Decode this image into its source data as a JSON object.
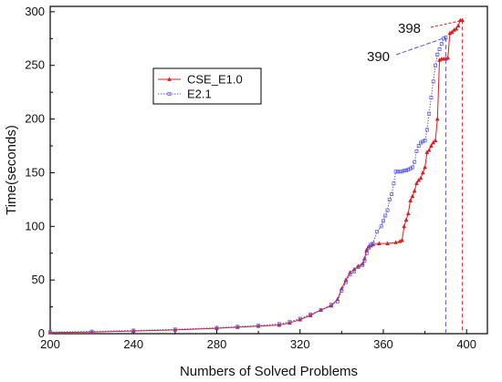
{
  "chart_data": {
    "type": "line",
    "title": "",
    "xlabel": "Numbers of Solved Problems",
    "ylabel": "Time(seconds)",
    "xlim": [
      200,
      410
    ],
    "ylim": [
      0,
      305
    ],
    "xticks": [
      200,
      240,
      280,
      320,
      360,
      400
    ],
    "yticks": [
      0,
      50,
      100,
      150,
      200,
      250,
      300
    ],
    "grid": false,
    "legend_position": "upper-left",
    "series": [
      {
        "name": "CSE_E1.0",
        "color": "#e41b1b",
        "marker": "triangle",
        "line_style": "solid",
        "x": [
          200,
          220,
          240,
          260,
          280,
          290,
          300,
          310,
          315,
          320,
          325,
          330,
          335,
          338,
          340,
          342,
          344,
          346,
          348,
          350,
          351,
          352,
          353,
          354,
          355,
          358,
          362,
          366,
          368,
          369,
          370,
          371,
          372,
          373,
          374,
          375,
          376,
          377,
          378,
          379,
          380,
          381,
          382,
          383,
          384,
          385,
          386,
          387,
          388,
          389,
          390,
          391,
          392,
          393,
          394,
          395,
          396,
          397,
          398
        ],
        "y": [
          1,
          1.5,
          2.5,
          3.5,
          5,
          6,
          7,
          8,
          10,
          13,
          17,
          22,
          26,
          32,
          42,
          50,
          57,
          60,
          63,
          65,
          70,
          78,
          81,
          82,
          83,
          84,
          84,
          85,
          86,
          87,
          100,
          106,
          112,
          124,
          128,
          133,
          140,
          143,
          145,
          150,
          155,
          169,
          171,
          175,
          178,
          180,
          200,
          255,
          256,
          256,
          256,
          257,
          280,
          281,
          283,
          284,
          287,
          292,
          292
        ]
      },
      {
        "name": "E2.1",
        "color": "#5555ee",
        "marker": "square",
        "line_style": "dotted",
        "x": [
          200,
          220,
          240,
          260,
          280,
          290,
          300,
          310,
          315,
          320,
          325,
          330,
          335,
          338,
          340,
          342,
          344,
          346,
          348,
          350,
          351,
          352,
          353,
          354,
          355,
          357,
          359,
          360,
          361,
          362,
          363,
          364,
          365,
          366,
          367,
          368,
          369,
          370,
          371,
          372,
          373,
          374,
          375,
          376,
          377,
          378,
          379,
          380,
          381,
          382,
          383,
          384,
          385,
          386,
          387,
          388,
          389,
          390
        ],
        "y": [
          1.5,
          2,
          3,
          4,
          5.5,
          6.5,
          7.5,
          9,
          11,
          14,
          18,
          22,
          27,
          30,
          40,
          48,
          55,
          58,
          62,
          64,
          68,
          75,
          80,
          83,
          84,
          95,
          100,
          105,
          110,
          115,
          125,
          130,
          140,
          151,
          151,
          151,
          151,
          152,
          152,
          153,
          154,
          155,
          160,
          170,
          175,
          178,
          179,
          180,
          190,
          205,
          220,
          235,
          250,
          260,
          265,
          270,
          275,
          276
        ]
      }
    ],
    "annotations": [
      {
        "text": "398",
        "x": 398,
        "y": 292
      },
      {
        "text": "390",
        "x": 390,
        "y": 276
      }
    ]
  }
}
